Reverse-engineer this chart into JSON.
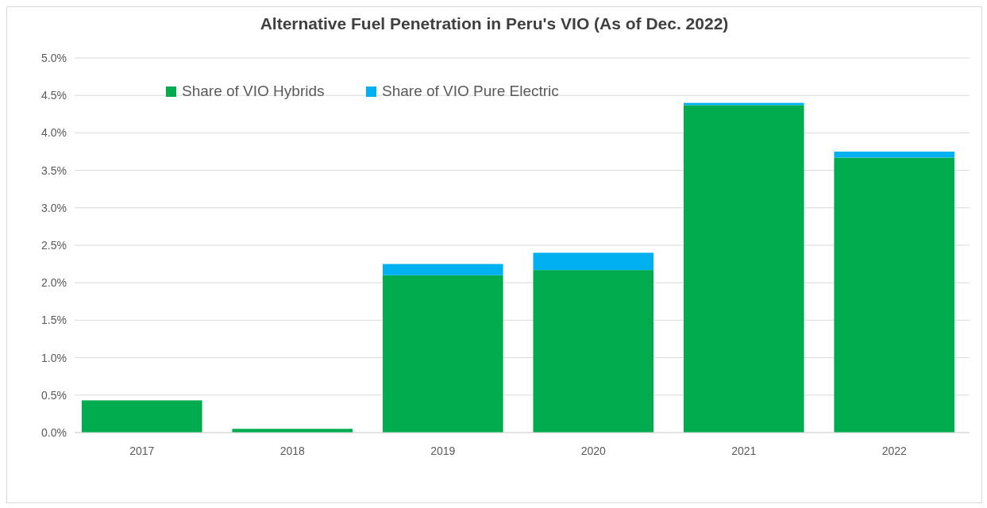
{
  "chart_data": {
    "type": "bar",
    "title": "Alternative Fuel Penetration in Peru's VIO (As of Dec. 2022)",
    "categories": [
      "2017",
      "2018",
      "2019",
      "2020",
      "2021",
      "2022"
    ],
    "stacked": true,
    "series": [
      {
        "name": "Share of VIO Hybrids",
        "color": "#00ac4e",
        "values": [
          0.43,
          0.05,
          2.1,
          2.17,
          4.37,
          3.67
        ]
      },
      {
        "name": "Share of VIO Pure Electric",
        "color": "#00b0f0",
        "values": [
          0,
          0,
          0.15,
          0.23,
          0.03,
          0.08
        ]
      }
    ],
    "ylim": [
      0,
      5
    ],
    "yticks": [
      {
        "value": 0,
        "label": "0.0%"
      },
      {
        "value": 0.5,
        "label": "0.5%"
      },
      {
        "value": 1,
        "label": "1.0%"
      },
      {
        "value": 1.5,
        "label": "1.5%"
      },
      {
        "value": 2,
        "label": "2.0%"
      },
      {
        "value": 2.5,
        "label": "2.5%"
      },
      {
        "value": 3,
        "label": "3.0%"
      },
      {
        "value": 3.5,
        "label": "3.5%"
      },
      {
        "value": 4,
        "label": "4.0%"
      },
      {
        "value": 4.5,
        "label": "4.5%"
      },
      {
        "value": 5,
        "label": "5.0%"
      }
    ],
    "grid": "y",
    "legend": "top"
  }
}
